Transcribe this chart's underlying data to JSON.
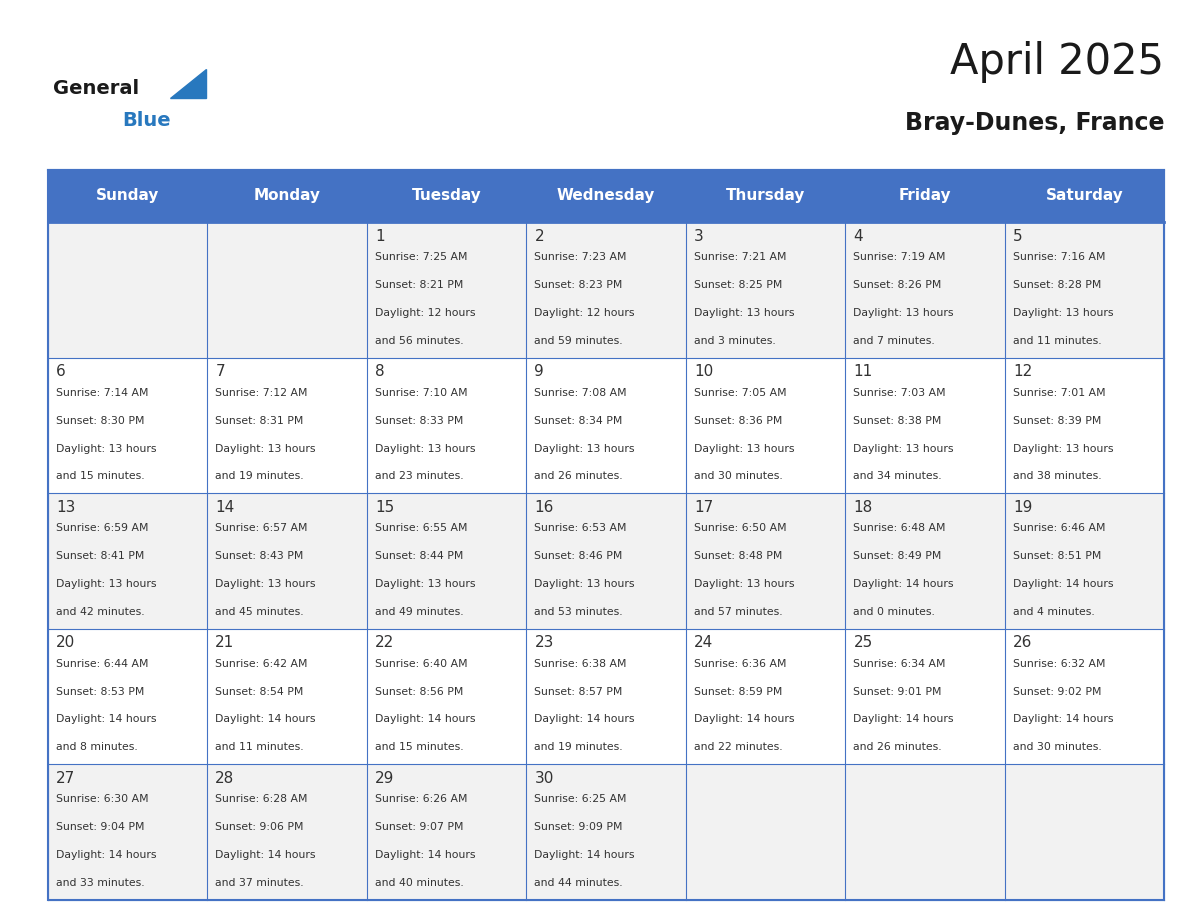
{
  "title": "April 2025",
  "subtitle": "Bray-Dunes, France",
  "header_bg": "#4472C4",
  "header_text_color": "#FFFFFF",
  "day_names": [
    "Sunday",
    "Monday",
    "Tuesday",
    "Wednesday",
    "Thursday",
    "Friday",
    "Saturday"
  ],
  "row_bg_odd": "#F2F2F2",
  "row_bg_even": "#FFFFFF",
  "cell_text_color": "#333333",
  "date_text_color": "#333333",
  "border_color": "#4472C4",
  "calendar": [
    [
      {
        "day": "",
        "sunrise": "",
        "sunset": "",
        "daylight": ""
      },
      {
        "day": "",
        "sunrise": "",
        "sunset": "",
        "daylight": ""
      },
      {
        "day": "1",
        "sunrise": "7:25 AM",
        "sunset": "8:21 PM",
        "daylight": "12 hours\nand 56 minutes."
      },
      {
        "day": "2",
        "sunrise": "7:23 AM",
        "sunset": "8:23 PM",
        "daylight": "12 hours\nand 59 minutes."
      },
      {
        "day": "3",
        "sunrise": "7:21 AM",
        "sunset": "8:25 PM",
        "daylight": "13 hours\nand 3 minutes."
      },
      {
        "day": "4",
        "sunrise": "7:19 AM",
        "sunset": "8:26 PM",
        "daylight": "13 hours\nand 7 minutes."
      },
      {
        "day": "5",
        "sunrise": "7:16 AM",
        "sunset": "8:28 PM",
        "daylight": "13 hours\nand 11 minutes."
      }
    ],
    [
      {
        "day": "6",
        "sunrise": "7:14 AM",
        "sunset": "8:30 PM",
        "daylight": "13 hours\nand 15 minutes."
      },
      {
        "day": "7",
        "sunrise": "7:12 AM",
        "sunset": "8:31 PM",
        "daylight": "13 hours\nand 19 minutes."
      },
      {
        "day": "8",
        "sunrise": "7:10 AM",
        "sunset": "8:33 PM",
        "daylight": "13 hours\nand 23 minutes."
      },
      {
        "day": "9",
        "sunrise": "7:08 AM",
        "sunset": "8:34 PM",
        "daylight": "13 hours\nand 26 minutes."
      },
      {
        "day": "10",
        "sunrise": "7:05 AM",
        "sunset": "8:36 PM",
        "daylight": "13 hours\nand 30 minutes."
      },
      {
        "day": "11",
        "sunrise": "7:03 AM",
        "sunset": "8:38 PM",
        "daylight": "13 hours\nand 34 minutes."
      },
      {
        "day": "12",
        "sunrise": "7:01 AM",
        "sunset": "8:39 PM",
        "daylight": "13 hours\nand 38 minutes."
      }
    ],
    [
      {
        "day": "13",
        "sunrise": "6:59 AM",
        "sunset": "8:41 PM",
        "daylight": "13 hours\nand 42 minutes."
      },
      {
        "day": "14",
        "sunrise": "6:57 AM",
        "sunset": "8:43 PM",
        "daylight": "13 hours\nand 45 minutes."
      },
      {
        "day": "15",
        "sunrise": "6:55 AM",
        "sunset": "8:44 PM",
        "daylight": "13 hours\nand 49 minutes."
      },
      {
        "day": "16",
        "sunrise": "6:53 AM",
        "sunset": "8:46 PM",
        "daylight": "13 hours\nand 53 minutes."
      },
      {
        "day": "17",
        "sunrise": "6:50 AM",
        "sunset": "8:48 PM",
        "daylight": "13 hours\nand 57 minutes."
      },
      {
        "day": "18",
        "sunrise": "6:48 AM",
        "sunset": "8:49 PM",
        "daylight": "14 hours\nand 0 minutes."
      },
      {
        "day": "19",
        "sunrise": "6:46 AM",
        "sunset": "8:51 PM",
        "daylight": "14 hours\nand 4 minutes."
      }
    ],
    [
      {
        "day": "20",
        "sunrise": "6:44 AM",
        "sunset": "8:53 PM",
        "daylight": "14 hours\nand 8 minutes."
      },
      {
        "day": "21",
        "sunrise": "6:42 AM",
        "sunset": "8:54 PM",
        "daylight": "14 hours\nand 11 minutes."
      },
      {
        "day": "22",
        "sunrise": "6:40 AM",
        "sunset": "8:56 PM",
        "daylight": "14 hours\nand 15 minutes."
      },
      {
        "day": "23",
        "sunrise": "6:38 AM",
        "sunset": "8:57 PM",
        "daylight": "14 hours\nand 19 minutes."
      },
      {
        "day": "24",
        "sunrise": "6:36 AM",
        "sunset": "8:59 PM",
        "daylight": "14 hours\nand 22 minutes."
      },
      {
        "day": "25",
        "sunrise": "6:34 AM",
        "sunset": "9:01 PM",
        "daylight": "14 hours\nand 26 minutes."
      },
      {
        "day": "26",
        "sunrise": "6:32 AM",
        "sunset": "9:02 PM",
        "daylight": "14 hours\nand 30 minutes."
      }
    ],
    [
      {
        "day": "27",
        "sunrise": "6:30 AM",
        "sunset": "9:04 PM",
        "daylight": "14 hours\nand 33 minutes."
      },
      {
        "day": "28",
        "sunrise": "6:28 AM",
        "sunset": "9:06 PM",
        "daylight": "14 hours\nand 37 minutes."
      },
      {
        "day": "29",
        "sunrise": "6:26 AM",
        "sunset": "9:07 PM",
        "daylight": "14 hours\nand 40 minutes."
      },
      {
        "day": "30",
        "sunrise": "6:25 AM",
        "sunset": "9:09 PM",
        "daylight": "14 hours\nand 44 minutes."
      },
      {
        "day": "",
        "sunrise": "",
        "sunset": "",
        "daylight": ""
      },
      {
        "day": "",
        "sunrise": "",
        "sunset": "",
        "daylight": ""
      },
      {
        "day": "",
        "sunrise": "",
        "sunset": "",
        "daylight": ""
      }
    ]
  ],
  "logo_general_color": "#1a1a1a",
  "logo_blue_color": "#2878BE",
  "logo_triangle_color": "#2878BE"
}
